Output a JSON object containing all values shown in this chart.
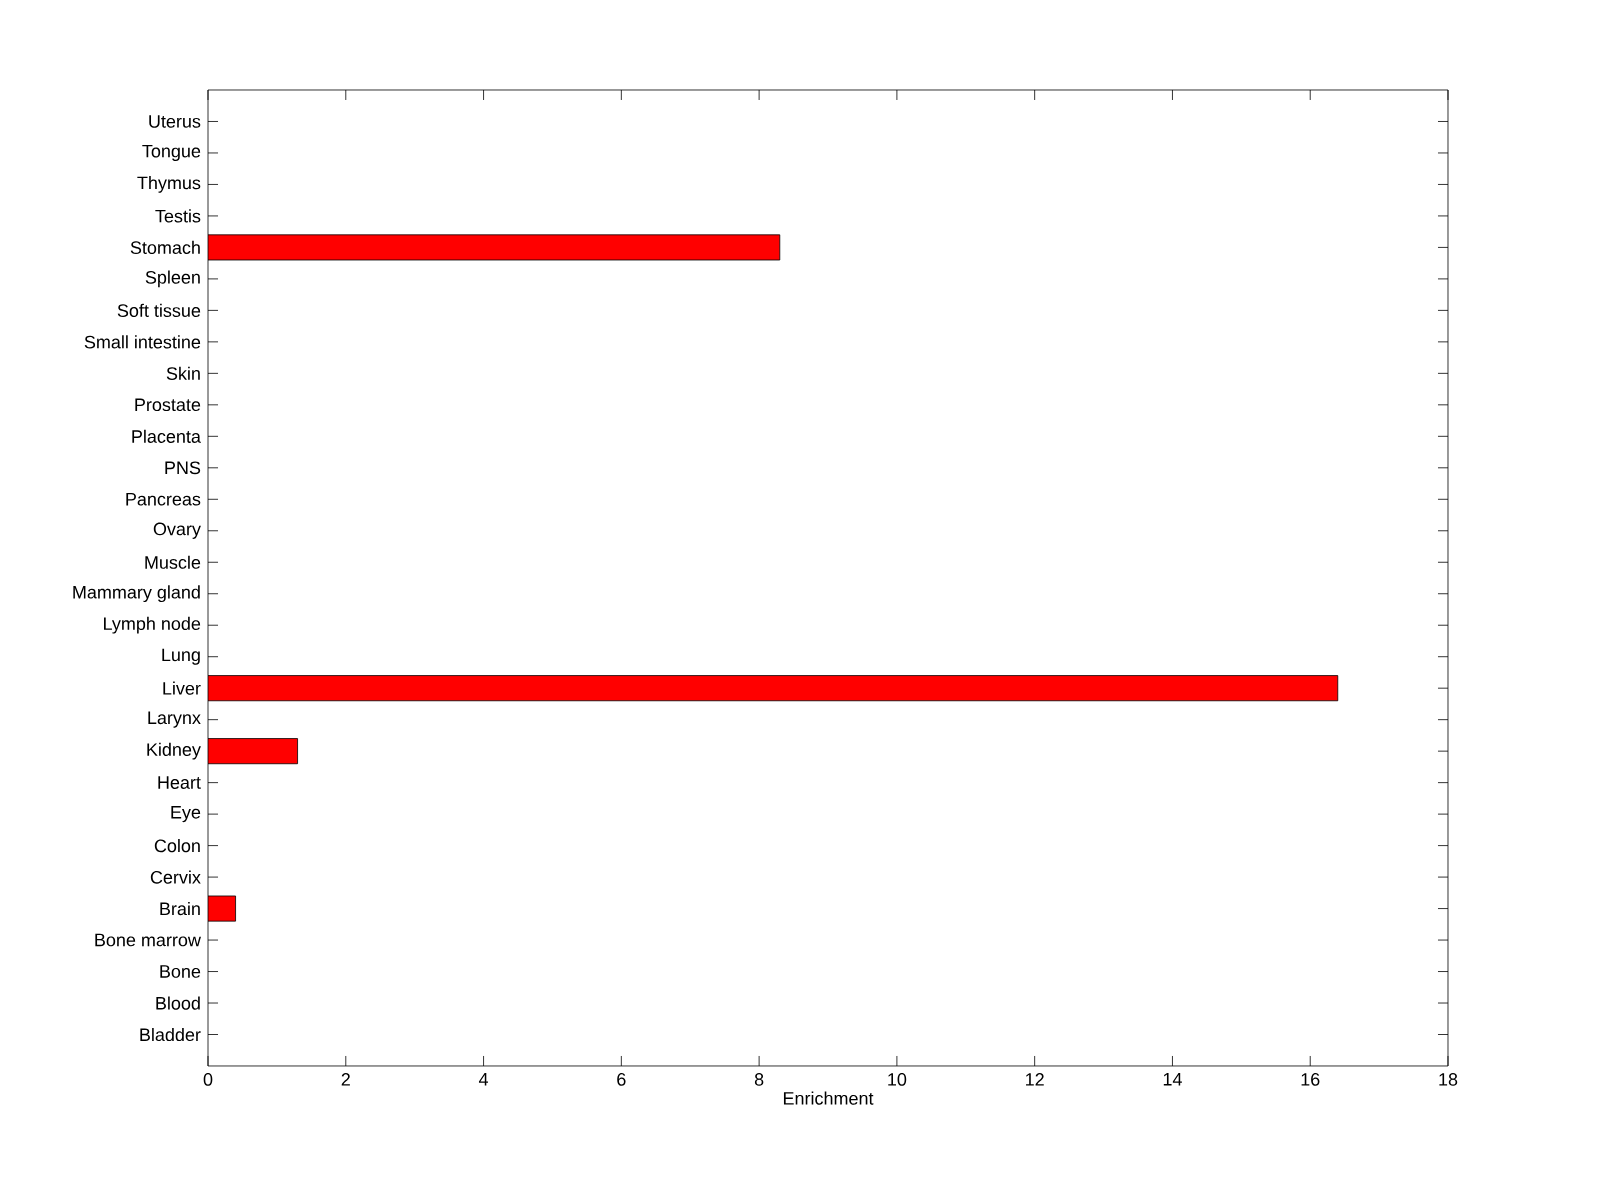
{
  "chart_data": {
    "type": "bar",
    "orientation": "horizontal",
    "xlabel": "Enrichment",
    "categories": [
      "Uterus",
      "Tongue",
      "Thymus",
      "Testis",
      "Stomach",
      "Spleen",
      "Soft tissue",
      "Small intestine",
      "Skin",
      "Prostate",
      "Placenta",
      "PNS",
      "Pancreas",
      "Ovary",
      "Muscle",
      "Mammary gland",
      "Lymph node",
      "Lung",
      "Liver",
      "Larynx",
      "Kidney",
      "Heart",
      "Eye",
      "Colon",
      "Cervix",
      "Brain",
      "Bone marrow",
      "Bone",
      "Blood",
      "Bladder"
    ],
    "values": [
      0,
      0,
      0,
      0,
      8.3,
      0,
      0,
      0,
      0,
      0,
      0,
      0,
      0,
      0,
      0,
      0,
      0,
      0,
      16.4,
      0,
      1.3,
      0,
      0,
      0,
      0,
      0.4,
      0,
      0,
      0,
      0
    ],
    "color": "#ff0000",
    "xlim": [
      0,
      18
    ],
    "xticks": [
      0,
      2,
      4,
      6,
      8,
      10,
      12,
      14,
      16,
      18
    ],
    "grid": false
  }
}
